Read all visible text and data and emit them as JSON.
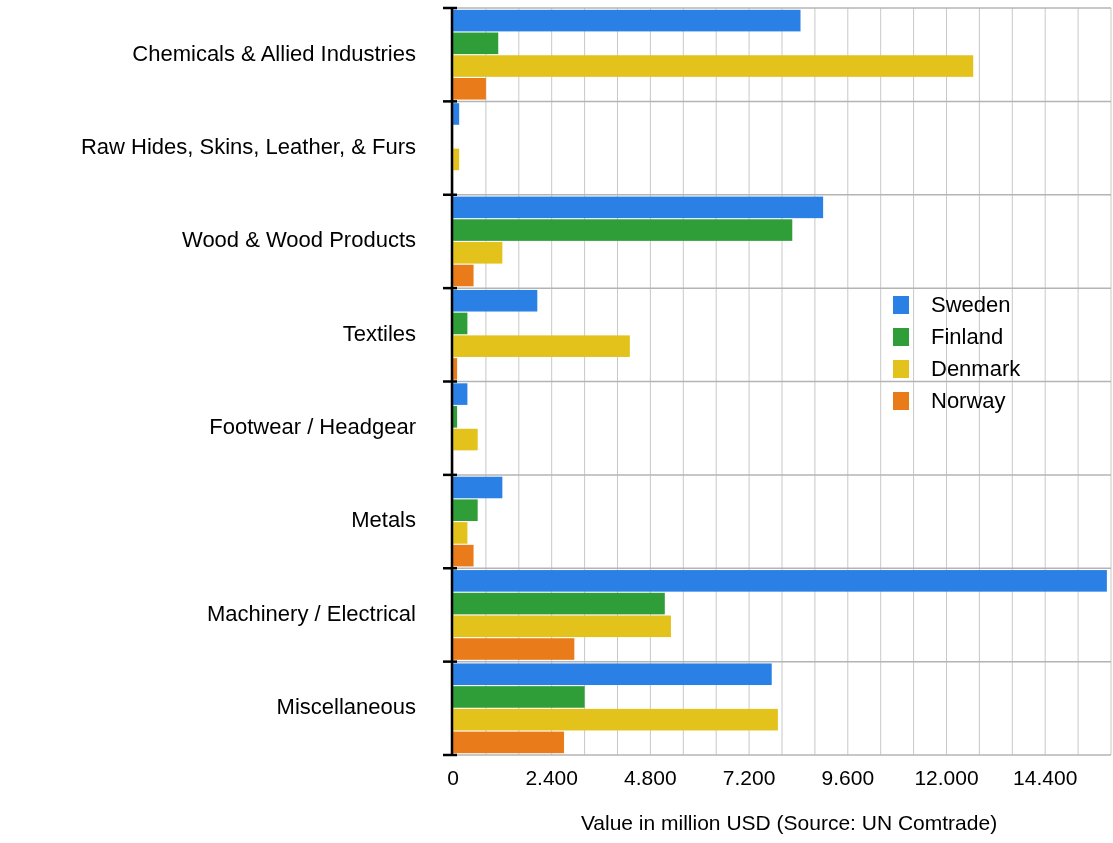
{
  "chart_data": {
    "type": "bar",
    "orientation": "horizontal",
    "xlabel": "Value in million USD (Source: UN Comtrade)",
    "categories": [
      "Chemicals & Allied Industries",
      "Raw Hides, Skins, Leather, & Furs",
      "Wood & Wood Products",
      "Textiles",
      "Footwear / Headgear",
      "Metals",
      "Machinery / Electrical",
      "Miscellaneous"
    ],
    "series": [
      {
        "name": "Sweden",
        "color": "#2a80e4",
        "values": [
          8450,
          150,
          9000,
          2050,
          350,
          1200,
          15900,
          7750
        ]
      },
      {
        "name": "Finland",
        "color": "#2f9e38",
        "values": [
          1100,
          0,
          8250,
          350,
          100,
          600,
          5150,
          3200
        ]
      },
      {
        "name": "Denmark",
        "color": "#e3c21c",
        "values": [
          12650,
          150,
          1200,
          4300,
          600,
          350,
          5300,
          7900
        ]
      },
      {
        "name": "Norway",
        "color": "#ea7b1a",
        "values": [
          800,
          0,
          500,
          100,
          0,
          500,
          2950,
          2700
        ]
      }
    ],
    "xlim": [
      0,
      16000
    ],
    "xticks": [
      0,
      {
        "value": 800,
        "label": null
      },
      {
        "value": 1600,
        "label": null
      },
      {
        "value": 2400,
        "label": "2.400"
      },
      {
        "value": 3200,
        "label": null
      },
      {
        "value": 4000,
        "label": null
      },
      {
        "value": 4800,
        "label": "4.800"
      },
      {
        "value": 5600,
        "label": null
      },
      {
        "value": 6400,
        "label": null
      },
      {
        "value": 7200,
        "label": "7.200"
      },
      {
        "value": 8000,
        "label": null
      },
      {
        "value": 8800,
        "label": null
      },
      {
        "value": 9600,
        "label": "9.600"
      },
      {
        "value": 10400,
        "label": null
      },
      {
        "value": 11200,
        "label": null
      },
      {
        "value": 12000,
        "label": "12.000"
      },
      {
        "value": 12800,
        "label": null
      },
      {
        "value": 13600,
        "label": null
      },
      {
        "value": 14400,
        "label": "14.400"
      },
      {
        "value": 15200,
        "label": null
      },
      {
        "value": 16000,
        "label": null
      }
    ],
    "grid": true,
    "legend": "right"
  }
}
